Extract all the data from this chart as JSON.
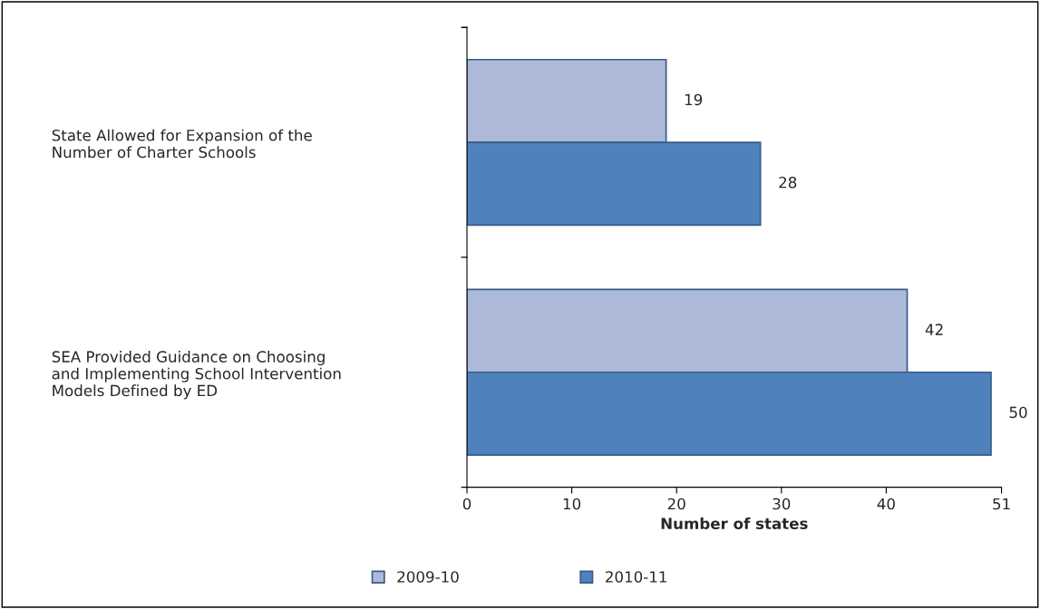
{
  "chart_data": {
    "type": "bar",
    "orientation": "horizontal",
    "xlabel": "Number of states",
    "categories": [
      "State Allowed for Expansion of the\nNumber of Charter Schools",
      "SEA Provided Guidance on Choosing\nand Implementing School Intervention\nModels Defined by ED"
    ],
    "series": [
      {
        "name": "2009-10",
        "color": "#adb9d8",
        "values": [
          19,
          42
        ]
      },
      {
        "name": "2010-11",
        "color": "#4f81bd",
        "values": [
          28,
          50
        ]
      }
    ],
    "xlim": [
      0,
      51
    ],
    "xticks": [
      0,
      10,
      20,
      30,
      40,
      51
    ],
    "data_labels": true,
    "grid": false,
    "legend": "bottom"
  }
}
